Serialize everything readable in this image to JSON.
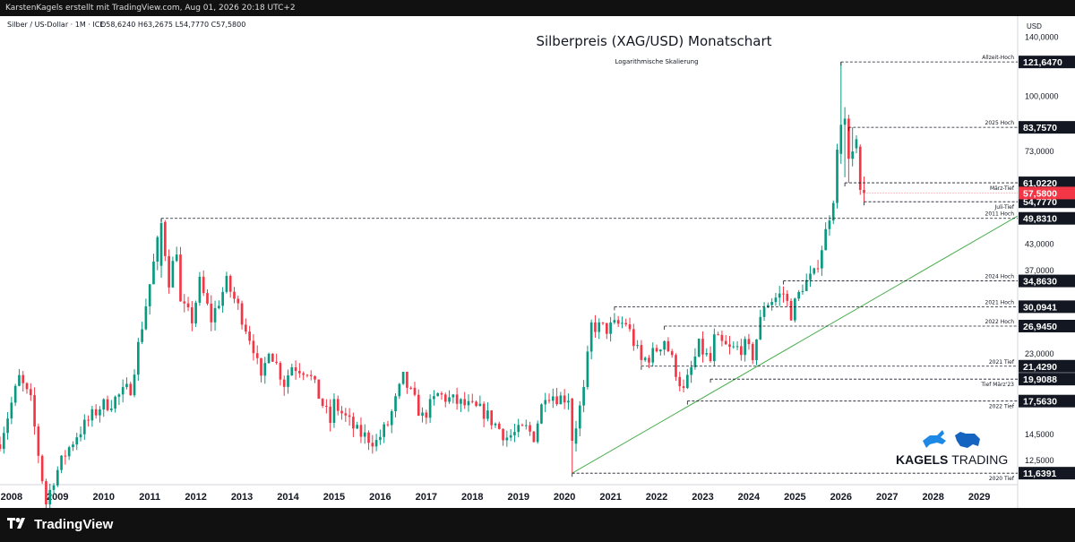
{
  "header": {
    "attribution": "KarstenKagels erstellt mit TradingView.com, Aug 01, 2026 20:18 UTC+2"
  },
  "symbol_info": {
    "name": "Silber / US-Dollar · 1M · ICE",
    "ohlc": "O58,6240  H63,2675  L54,7770  C57,5800"
  },
  "footer": {
    "brand": "TradingView"
  },
  "branding": {
    "name_bold": "KAGELS",
    "name_light": "TRADING"
  },
  "colors": {
    "up": "#089981",
    "down": "#f23645",
    "trend": "#4caf50",
    "price_label": "#f23645"
  },
  "chart_data": {
    "type": "candlestick",
    "title": "Silberpreis (XAG/USD) Monatschart",
    "subtitle": "Logarithmische Skalierung",
    "currency_label": "USD",
    "y_scale": "log",
    "ylim": [
      10.9,
      158
    ],
    "xlim": [
      "2007-10",
      "2029-11"
    ],
    "x_ticks": [
      "2008",
      "2009",
      "2010",
      "2011",
      "2012",
      "2013",
      "2014",
      "2015",
      "2016",
      "2017",
      "2018",
      "2019",
      "2020",
      "2021",
      "2022",
      "2023",
      "2024",
      "2025",
      "2026",
      "2027",
      "2028",
      "2029"
    ],
    "y_ticks": [
      {
        "label": "140,0000",
        "value": 140
      },
      {
        "label": "100,0000",
        "value": 100
      },
      {
        "label": "73,0000",
        "value": 73
      },
      {
        "label": "43,0000",
        "value": 43
      },
      {
        "label": "37,0000",
        "value": 37
      },
      {
        "label": "23,0000",
        "value": 23
      },
      {
        "label": "14,5000",
        "value": 14.5
      },
      {
        "label": "12,5000",
        "value": 12.5
      }
    ],
    "levels": [
      {
        "label": "Allzeit-Hoch",
        "value": 121.647,
        "price": "121,6470",
        "start": "2026-01"
      },
      {
        "label": "2025 Hoch",
        "value": 83.757,
        "price": "83,7570",
        "start": "2026-03"
      },
      {
        "label": "März-Tief",
        "value": 61.022,
        "price": "61,0220",
        "start": "2026-02"
      },
      {
        "label": "Juli-Tief",
        "value": 54.777,
        "price": "54,7770",
        "start": "2026-07"
      },
      {
        "label": "2011 Hoch",
        "value": 49.831,
        "price": "49,8310",
        "start": "2011-04"
      },
      {
        "label": "2024 Hoch",
        "value": 34.863,
        "price": "34,8630",
        "start": "2024-10"
      },
      {
        "label": "2021 Hoch",
        "value": 30.0941,
        "price": "30,0941",
        "start": "2021-02"
      },
      {
        "label": "2022 Hoch",
        "value": 26.945,
        "price": "26,9450",
        "start": "2022-03"
      },
      {
        "label": "2021 Tief",
        "value": 21.429,
        "price": "21,4290",
        "start": "2021-09"
      },
      {
        "label": "Tief März'23",
        "value": 19.9088,
        "price": "19,9088",
        "start": "2023-03"
      },
      {
        "label": "2022 Tief",
        "value": 17.563,
        "price": "17,5630",
        "start": "2022-09"
      },
      {
        "label": "2020 Tief",
        "value": 11.6391,
        "price": "11,6391",
        "start": "2020-03"
      }
    ],
    "current_price": {
      "value": 57.58,
      "price": "57,5800"
    },
    "trendline": {
      "start": [
        "2020-03",
        11.6391
      ],
      "end": [
        "2029-11",
        50.5
      ]
    },
    "anchors": [
      [
        "2007-10",
        14.0
      ],
      [
        "2008-03",
        20.0
      ],
      [
        "2008-06",
        17.5
      ],
      [
        "2008-08",
        13.0
      ],
      [
        "2008-10",
        9.8
      ],
      [
        "2008-12",
        11.3
      ],
      [
        "2009-03",
        13.0
      ],
      [
        "2009-06",
        14.5
      ],
      [
        "2009-12",
        17.0
      ],
      [
        "2010-03",
        17.5
      ],
      [
        "2010-08",
        19.0
      ],
      [
        "2010-12",
        30.5
      ],
      [
        "2011-04",
        48.5
      ],
      [
        "2011-06",
        35.0
      ],
      [
        "2011-08",
        42.0
      ],
      [
        "2011-09",
        30.5
      ],
      [
        "2011-12",
        28.0
      ],
      [
        "2012-02",
        34.5
      ],
      [
        "2012-05",
        28.0
      ],
      [
        "2012-09",
        34.5
      ],
      [
        "2012-12",
        30.0
      ],
      [
        "2013-04",
        24.0
      ],
      [
        "2013-06",
        19.5
      ],
      [
        "2013-08",
        24.0
      ],
      [
        "2013-12",
        19.5
      ],
      [
        "2014-02",
        21.5
      ],
      [
        "2014-06",
        21.0
      ],
      [
        "2014-12",
        15.6
      ],
      [
        "2015-01",
        17.3
      ],
      [
        "2015-07",
        14.7
      ],
      [
        "2015-12",
        13.9
      ],
      [
        "2016-03",
        15.4
      ],
      [
        "2016-07",
        20.0
      ],
      [
        "2016-12",
        16.0
      ],
      [
        "2017-04",
        18.2
      ],
      [
        "2017-12",
        17.0
      ],
      [
        "2018-04",
        16.5
      ],
      [
        "2018-10",
        14.3
      ],
      [
        "2019-03",
        15.0
      ],
      [
        "2019-05",
        14.4
      ],
      [
        "2019-08",
        18.5
      ],
      [
        "2019-12",
        17.9
      ],
      [
        "2020-02",
        18.0
      ],
      [
        "2020-03",
        14.0
      ],
      [
        "2020-06",
        18.5
      ],
      [
        "2020-08",
        27.0
      ],
      [
        "2020-12",
        26.5
      ],
      [
        "2021-02",
        27.0
      ],
      [
        "2021-05",
        27.5
      ],
      [
        "2021-09",
        22.0
      ],
      [
        "2021-12",
        23.0
      ],
      [
        "2022-03",
        25.0
      ],
      [
        "2022-08",
        18.5
      ],
      [
        "2022-12",
        24.0
      ],
      [
        "2023-03",
        22.0
      ],
      [
        "2023-04",
        25.0
      ],
      [
        "2023-08",
        23.5
      ],
      [
        "2023-12",
        24.0
      ],
      [
        "2024-02",
        22.8
      ],
      [
        "2024-05",
        30.5
      ],
      [
        "2024-10",
        32.5
      ],
      [
        "2024-12",
        29.0
      ],
      [
        "2025-03",
        34.0
      ],
      [
        "2025-06",
        36.0
      ],
      [
        "2025-09",
        46.0
      ],
      [
        "2025-11",
        56.5
      ],
      [
        "2025-12",
        72.0
      ],
      [
        "2026-01",
        85.0
      ],
      [
        "2026-02",
        88.0
      ],
      [
        "2026-03",
        70.0
      ],
      [
        "2026-04",
        73.0
      ],
      [
        "2026-05",
        75.0
      ],
      [
        "2026-06",
        58.6
      ],
      [
        "2026-07",
        57.58
      ]
    ],
    "overrides": {
      "2026-01": {
        "o": 72.0,
        "h": 121.647,
        "l": 68.0,
        "c": 85.0
      },
      "2026-02": {
        "o": 85.0,
        "h": 94.0,
        "l": 63.0,
        "c": 88.0
      },
      "2026-03": {
        "o": 88.0,
        "h": 90.0,
        "l": 61.022,
        "c": 70.0
      },
      "2026-04": {
        "o": 70.0,
        "h": 83.757,
        "l": 67.0,
        "c": 73.0
      },
      "2026-06": {
        "o": 75.0,
        "h": 76.0,
        "l": 57.0,
        "c": 58.624
      },
      "2026-07": {
        "o": 58.624,
        "h": 63.2675,
        "l": 54.777,
        "c": 57.58
      },
      "2020-03": {
        "o": 17.8,
        "h": 17.9,
        "l": 11.6391,
        "c": 14.0
      },
      "2011-04": {
        "o": 38.0,
        "h": 49.831,
        "l": 35.5,
        "c": 48.5
      }
    }
  }
}
